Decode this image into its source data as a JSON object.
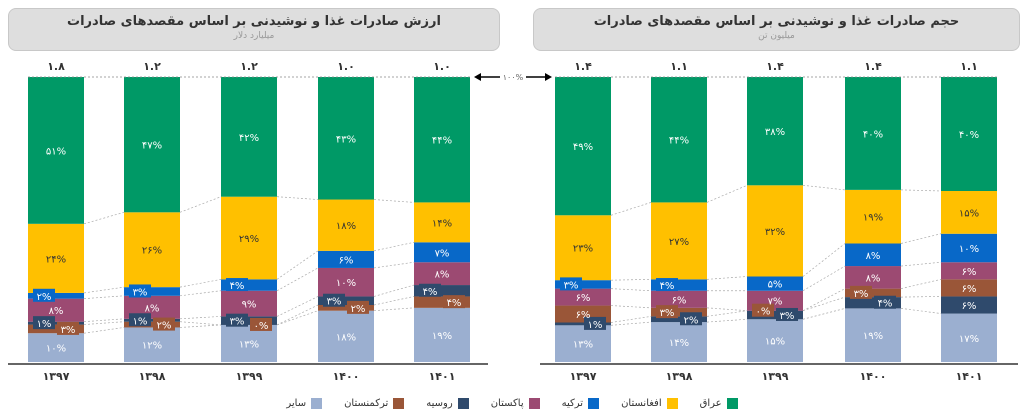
{
  "arrow_label": "۱۰۰%",
  "legend": [
    {
      "key": "iraq",
      "label": "عراق",
      "color": "#009966"
    },
    {
      "key": "afghanistan",
      "label": "افغانستان",
      "color": "#FFC000"
    },
    {
      "key": "turkey",
      "label": "ترکیه",
      "color": "#0868C8"
    },
    {
      "key": "pakistan",
      "label": "پاکستان",
      "color": "#9C4A72"
    },
    {
      "key": "russia",
      "label": "روسیه",
      "color": "#2F4A6C"
    },
    {
      "key": "turkmenistan",
      "label": "ترکمنستان",
      "color": "#9A5638"
    },
    {
      "key": "other",
      "label": "سایر",
      "color": "#9BAFD0"
    }
  ],
  "chart_data": [
    {
      "type": "bar",
      "stacked": "percent",
      "title": "ارزش صادرات غذا و نوشیدنی بر اساس مقصدهای صادرات",
      "subtitle": "میلیارد دلار",
      "categories": [
        "۱۳۹۷",
        "۱۳۹۸",
        "۱۳۹۹",
        "۱۴۰۰",
        "۱۴۰۱"
      ],
      "totals": [
        "۱.۸",
        "۱.۲",
        "۱.۲",
        "۱.۰",
        "۱.۰"
      ],
      "stack_order": [
        "other",
        "turkmenistan",
        "russia",
        "pakistan",
        "turkey",
        "afghanistan",
        "iraq"
      ],
      "series": [
        {
          "key": "other",
          "name": "سایر",
          "values": [
            10,
            12,
            13,
            18,
            19
          ]
        },
        {
          "key": "turkmenistan",
          "name": "ترکمنستان",
          "values": [
            3,
            2,
            0,
            2,
            4
          ]
        },
        {
          "key": "russia",
          "name": "روسیه",
          "values": [
            1,
            1,
            3,
            3,
            4
          ]
        },
        {
          "key": "pakistan",
          "name": "پاکستان",
          "values": [
            8,
            8,
            9,
            10,
            8
          ]
        },
        {
          "key": "turkey",
          "name": "ترکیه",
          "values": [
            2,
            3,
            4,
            6,
            7
          ]
        },
        {
          "key": "afghanistan",
          "name": "افغانستان",
          "values": [
            24,
            26,
            29,
            18,
            14
          ]
        },
        {
          "key": "iraq",
          "name": "عراق",
          "values": [
            51,
            47,
            42,
            43,
            44
          ]
        }
      ]
    },
    {
      "type": "bar",
      "stacked": "percent",
      "title": "حجم صادرات غذا و نوشیدنی بر اساس مقصدهای صادرات",
      "subtitle": "میلیون تن",
      "categories": [
        "۱۳۹۷",
        "۱۳۹۸",
        "۱۳۹۹",
        "۱۴۰۰",
        "۱۴۰۱"
      ],
      "totals": [
        "۱.۴",
        "۱.۱",
        "۱.۴",
        "۱.۴",
        "۱.۱"
      ],
      "stack_order": [
        "other",
        "russia",
        "turkmenistan",
        "pakistan",
        "turkey",
        "afghanistan",
        "iraq"
      ],
      "series": [
        {
          "key": "other",
          "name": "سایر",
          "values": [
            13,
            14,
            15,
            19,
            17
          ]
        },
        {
          "key": "russia",
          "name": "روسیه",
          "values": [
            1,
            2,
            3,
            4,
            6
          ]
        },
        {
          "key": "turkmenistan",
          "name": "ترکمنستان",
          "values": [
            6,
            3,
            0,
            3,
            6
          ]
        },
        {
          "key": "pakistan",
          "name": "پاکستان",
          "values": [
            6,
            6,
            7,
            8,
            6
          ]
        },
        {
          "key": "turkey",
          "name": "ترکیه",
          "values": [
            3,
            4,
            5,
            8,
            10
          ]
        },
        {
          "key": "afghanistan",
          "name": "افغانستان",
          "values": [
            23,
            27,
            32,
            19,
            15
          ]
        },
        {
          "key": "iraq",
          "name": "عراق",
          "values": [
            49,
            44,
            38,
            40,
            40
          ]
        }
      ]
    }
  ]
}
